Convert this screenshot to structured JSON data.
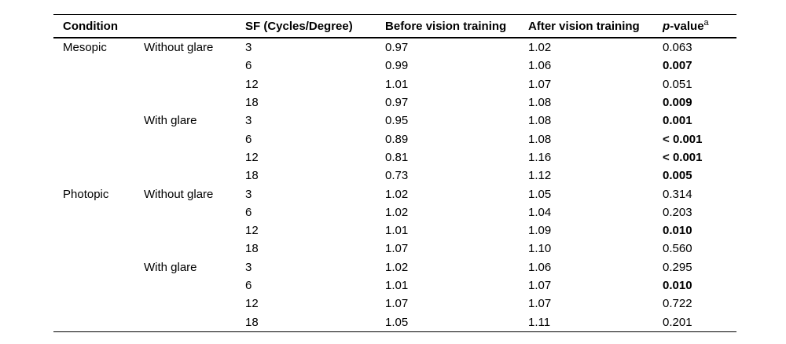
{
  "table": {
    "headers": {
      "condition": "Condition",
      "sf": "SF (Cycles/Degree)",
      "before": "Before vision training",
      "after": "After vision training",
      "pvalue_p": "p",
      "pvalue_rest": "-value",
      "pvalue_footnote_marker": "a"
    },
    "rows": [
      {
        "condition": "Mesopic",
        "glare": "Without glare",
        "sf": "3",
        "before": "0.97",
        "after": "1.02",
        "p": "0.063",
        "p_bold": false
      },
      {
        "condition": "",
        "glare": "",
        "sf": "6",
        "before": "0.99",
        "after": "1.06",
        "p": "0.007",
        "p_bold": true
      },
      {
        "condition": "",
        "glare": "",
        "sf": "12",
        "before": "1.01",
        "after": "1.07",
        "p": "0.051",
        "p_bold": false
      },
      {
        "condition": "",
        "glare": "",
        "sf": "18",
        "before": "0.97",
        "after": "1.08",
        "p": "0.009",
        "p_bold": true
      },
      {
        "condition": "",
        "glare": "With glare",
        "sf": "3",
        "before": "0.95",
        "after": "1.08",
        "p": "0.001",
        "p_bold": true
      },
      {
        "condition": "",
        "glare": "",
        "sf": "6",
        "before": "0.89",
        "after": "1.08",
        "p": "< 0.001",
        "p_bold": true
      },
      {
        "condition": "",
        "glare": "",
        "sf": "12",
        "before": "0.81",
        "after": "1.16",
        "p": "< 0.001",
        "p_bold": true
      },
      {
        "condition": "",
        "glare": "",
        "sf": "18",
        "before": "0.73",
        "after": "1.12",
        "p": "0.005",
        "p_bold": true
      },
      {
        "condition": "Photopic",
        "glare": "Without glare",
        "sf": "3",
        "before": "1.02",
        "after": "1.05",
        "p": "0.314",
        "p_bold": false
      },
      {
        "condition": "",
        "glare": "",
        "sf": "6",
        "before": "1.02",
        "after": "1.04",
        "p": "0.203",
        "p_bold": false
      },
      {
        "condition": "",
        "glare": "",
        "sf": "12",
        "before": "1.01",
        "after": "1.09",
        "p": "0.010",
        "p_bold": true
      },
      {
        "condition": "",
        "glare": "",
        "sf": "18",
        "before": "1.07",
        "after": "1.10",
        "p": "0.560",
        "p_bold": false
      },
      {
        "condition": "",
        "glare": "With glare",
        "sf": "3",
        "before": "1.02",
        "after": "1.06",
        "p": "0.295",
        "p_bold": false
      },
      {
        "condition": "",
        "glare": "",
        "sf": "6",
        "before": "1.01",
        "after": "1.07",
        "p": "0.010",
        "p_bold": true
      },
      {
        "condition": "",
        "glare": "",
        "sf": "12",
        "before": "1.07",
        "after": "1.07",
        "p": "0.722",
        "p_bold": false
      },
      {
        "condition": "",
        "glare": "",
        "sf": "18",
        "before": "1.05",
        "after": "1.11",
        "p": "0.201",
        "p_bold": false
      }
    ]
  }
}
